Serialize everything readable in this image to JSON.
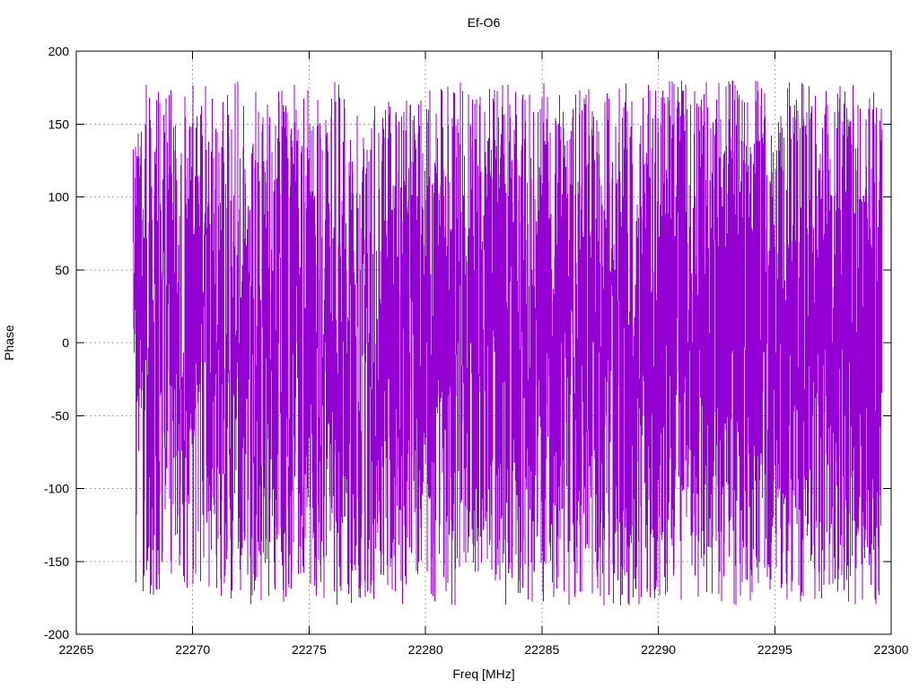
{
  "chart_data": {
    "type": "line",
    "title": "Ef-O6",
    "xlabel": "Freq [MHz]",
    "ylabel": "Phase",
    "xlim": [
      22265,
      22300
    ],
    "ylim": [
      -200,
      200
    ],
    "xticks": [
      22265,
      22270,
      22275,
      22280,
      22285,
      22290,
      22295,
      22300
    ],
    "yticks": [
      -200,
      -150,
      -100,
      -50,
      0,
      50,
      100,
      150,
      200
    ],
    "grid": true,
    "legend": "none",
    "series": [
      {
        "name": "phase",
        "color": "#9400d3",
        "x_start": 22267.45,
        "x_end": 22299.6,
        "n_points": 3200,
        "y_distribution": "uniform-noise",
        "y_min": -180,
        "y_max": 180,
        "description": "Wrapped interferometric phase vs frequency; values scattered uniformly across -180..180 deg, denser toward higher frequency"
      }
    ]
  },
  "colors": {
    "series": "#9400d3",
    "grid": "#a6a6a6",
    "axis": "#000000",
    "background": "#ffffff"
  }
}
